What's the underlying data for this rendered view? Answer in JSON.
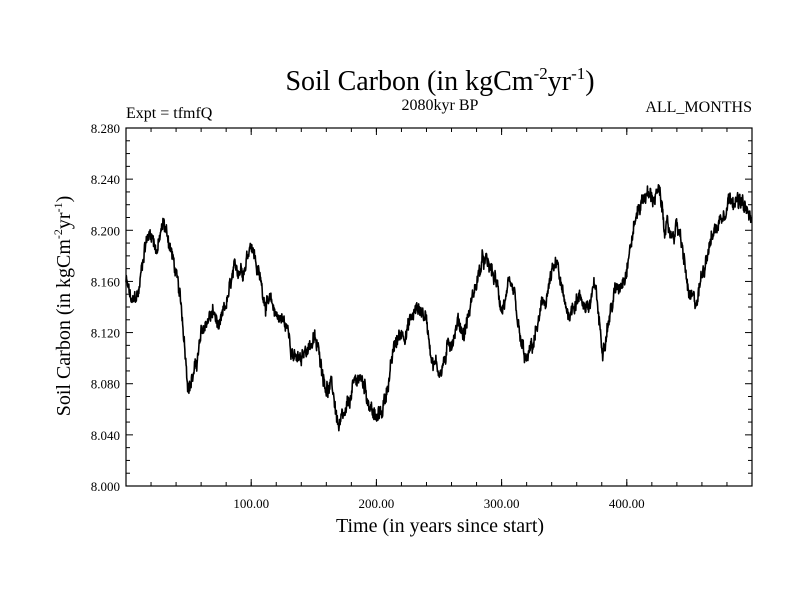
{
  "chart_data": {
    "type": "line",
    "title": "Soil Carbon (in kgCm",
    "title_sup1": "-2",
    "title_mid": "yr",
    "title_sup2": "-1",
    "title_end": ")",
    "subtitle_left": "Expt = tfmfQ",
    "subtitle_center": "2080kyr BP",
    "subtitle_right": "ALL_MONTHS",
    "xlabel": "Time (in years since start)",
    "ylabel": "Soil Carbon (in kgCm",
    "ylabel_sup1": "-2",
    "ylabel_mid": "yr",
    "ylabel_sup2": "-1",
    "ylabel_end": ")",
    "xlim": [
      0,
      500
    ],
    "ylim": [
      8.0,
      8.28
    ],
    "x_ticks": [
      100,
      200,
      300,
      400
    ],
    "x_tick_labels": [
      "100.00",
      "200.00",
      "300.00",
      "400.00"
    ],
    "y_ticks": [
      8.0,
      8.04,
      8.08,
      8.12,
      8.16,
      8.2,
      8.24,
      8.28
    ],
    "y_tick_labels": [
      "8.000",
      "8.040",
      "8.080",
      "8.120",
      "8.160",
      "8.200",
      "8.240",
      "8.280"
    ],
    "series": [
      {
        "name": "Soil Carbon",
        "color": "#000000",
        "x": [
          0,
          5,
          10,
          15,
          20,
          25,
          30,
          35,
          40,
          45,
          50,
          55,
          60,
          65,
          70,
          75,
          80,
          85,
          90,
          95,
          100,
          105,
          110,
          115,
          120,
          125,
          130,
          135,
          140,
          145,
          150,
          155,
          160,
          165,
          170,
          175,
          180,
          185,
          190,
          195,
          200,
          205,
          210,
          215,
          220,
          225,
          230,
          235,
          240,
          245,
          250,
          255,
          260,
          265,
          270,
          275,
          280,
          285,
          290,
          295,
          300,
          305,
          310,
          315,
          320,
          325,
          330,
          335,
          340,
          345,
          350,
          355,
          360,
          365,
          370,
          375,
          380,
          385,
          390,
          395,
          400,
          405,
          410,
          415,
          420,
          425,
          430,
          435,
          440,
          445,
          450,
          455,
          460,
          465,
          470,
          475,
          480,
          485,
          490,
          495,
          500
        ],
        "values": [
          8.16,
          8.14,
          8.15,
          8.19,
          8.2,
          8.185,
          8.205,
          8.19,
          8.165,
          8.13,
          8.08,
          8.09,
          8.115,
          8.13,
          8.135,
          8.12,
          8.14,
          8.16,
          8.17,
          8.175,
          8.195,
          8.17,
          8.15,
          8.14,
          8.135,
          8.13,
          8.12,
          8.1,
          8.095,
          8.11,
          8.115,
          8.1,
          8.08,
          8.075,
          8.045,
          8.05,
          8.07,
          8.085,
          8.08,
          8.065,
          8.05,
          8.06,
          8.085,
          8.11,
          8.12,
          8.125,
          8.135,
          8.14,
          8.13,
          8.1,
          8.09,
          8.1,
          8.115,
          8.13,
          8.12,
          8.14,
          8.16,
          8.175,
          8.17,
          8.16,
          8.14,
          8.15,
          8.145,
          8.11,
          8.095,
          8.11,
          8.13,
          8.145,
          8.165,
          8.17,
          8.14,
          8.135,
          8.15,
          8.145,
          8.14,
          8.155,
          8.11,
          8.13,
          8.15,
          8.16,
          8.175,
          8.2,
          8.22,
          8.23,
          8.225,
          8.23,
          8.205,
          8.195,
          8.205,
          8.18,
          8.145,
          8.14,
          8.165,
          8.19,
          8.2,
          8.21,
          8.225,
          8.23,
          8.22,
          8.215,
          8.205
        ]
      }
    ]
  }
}
